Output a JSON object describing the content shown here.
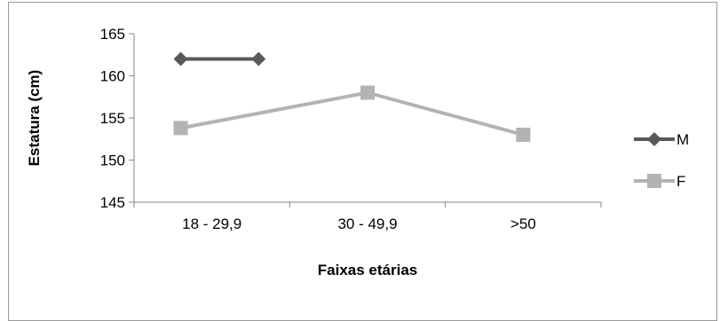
{
  "chart_data": {
    "type": "line",
    "title": "",
    "xlabel": "Faixas etárias",
    "ylabel": "Estatura (cm)",
    "categories": [
      "18 - 29,9",
      "30 - 49,9",
      ">50"
    ],
    "ylim": [
      145,
      165
    ],
    "yticks": [
      145,
      150,
      155,
      160,
      165
    ],
    "grid": false,
    "legend_position": "right",
    "series": [
      {
        "name": "M",
        "color": "#595959",
        "marker": "diamond",
        "points": [
          {
            "x": "18 - 29,9",
            "y": 162
          },
          {
            "x": "18 - 29,9",
            "y": 162
          }
        ]
      },
      {
        "name": "F",
        "color": "#b3b3b3",
        "marker": "square",
        "points": [
          {
            "x": "18 - 29,9",
            "y": 153.8
          },
          {
            "x": "30 - 49,9",
            "y": 158
          },
          {
            "x": ">50",
            "y": 153
          }
        ]
      }
    ]
  }
}
